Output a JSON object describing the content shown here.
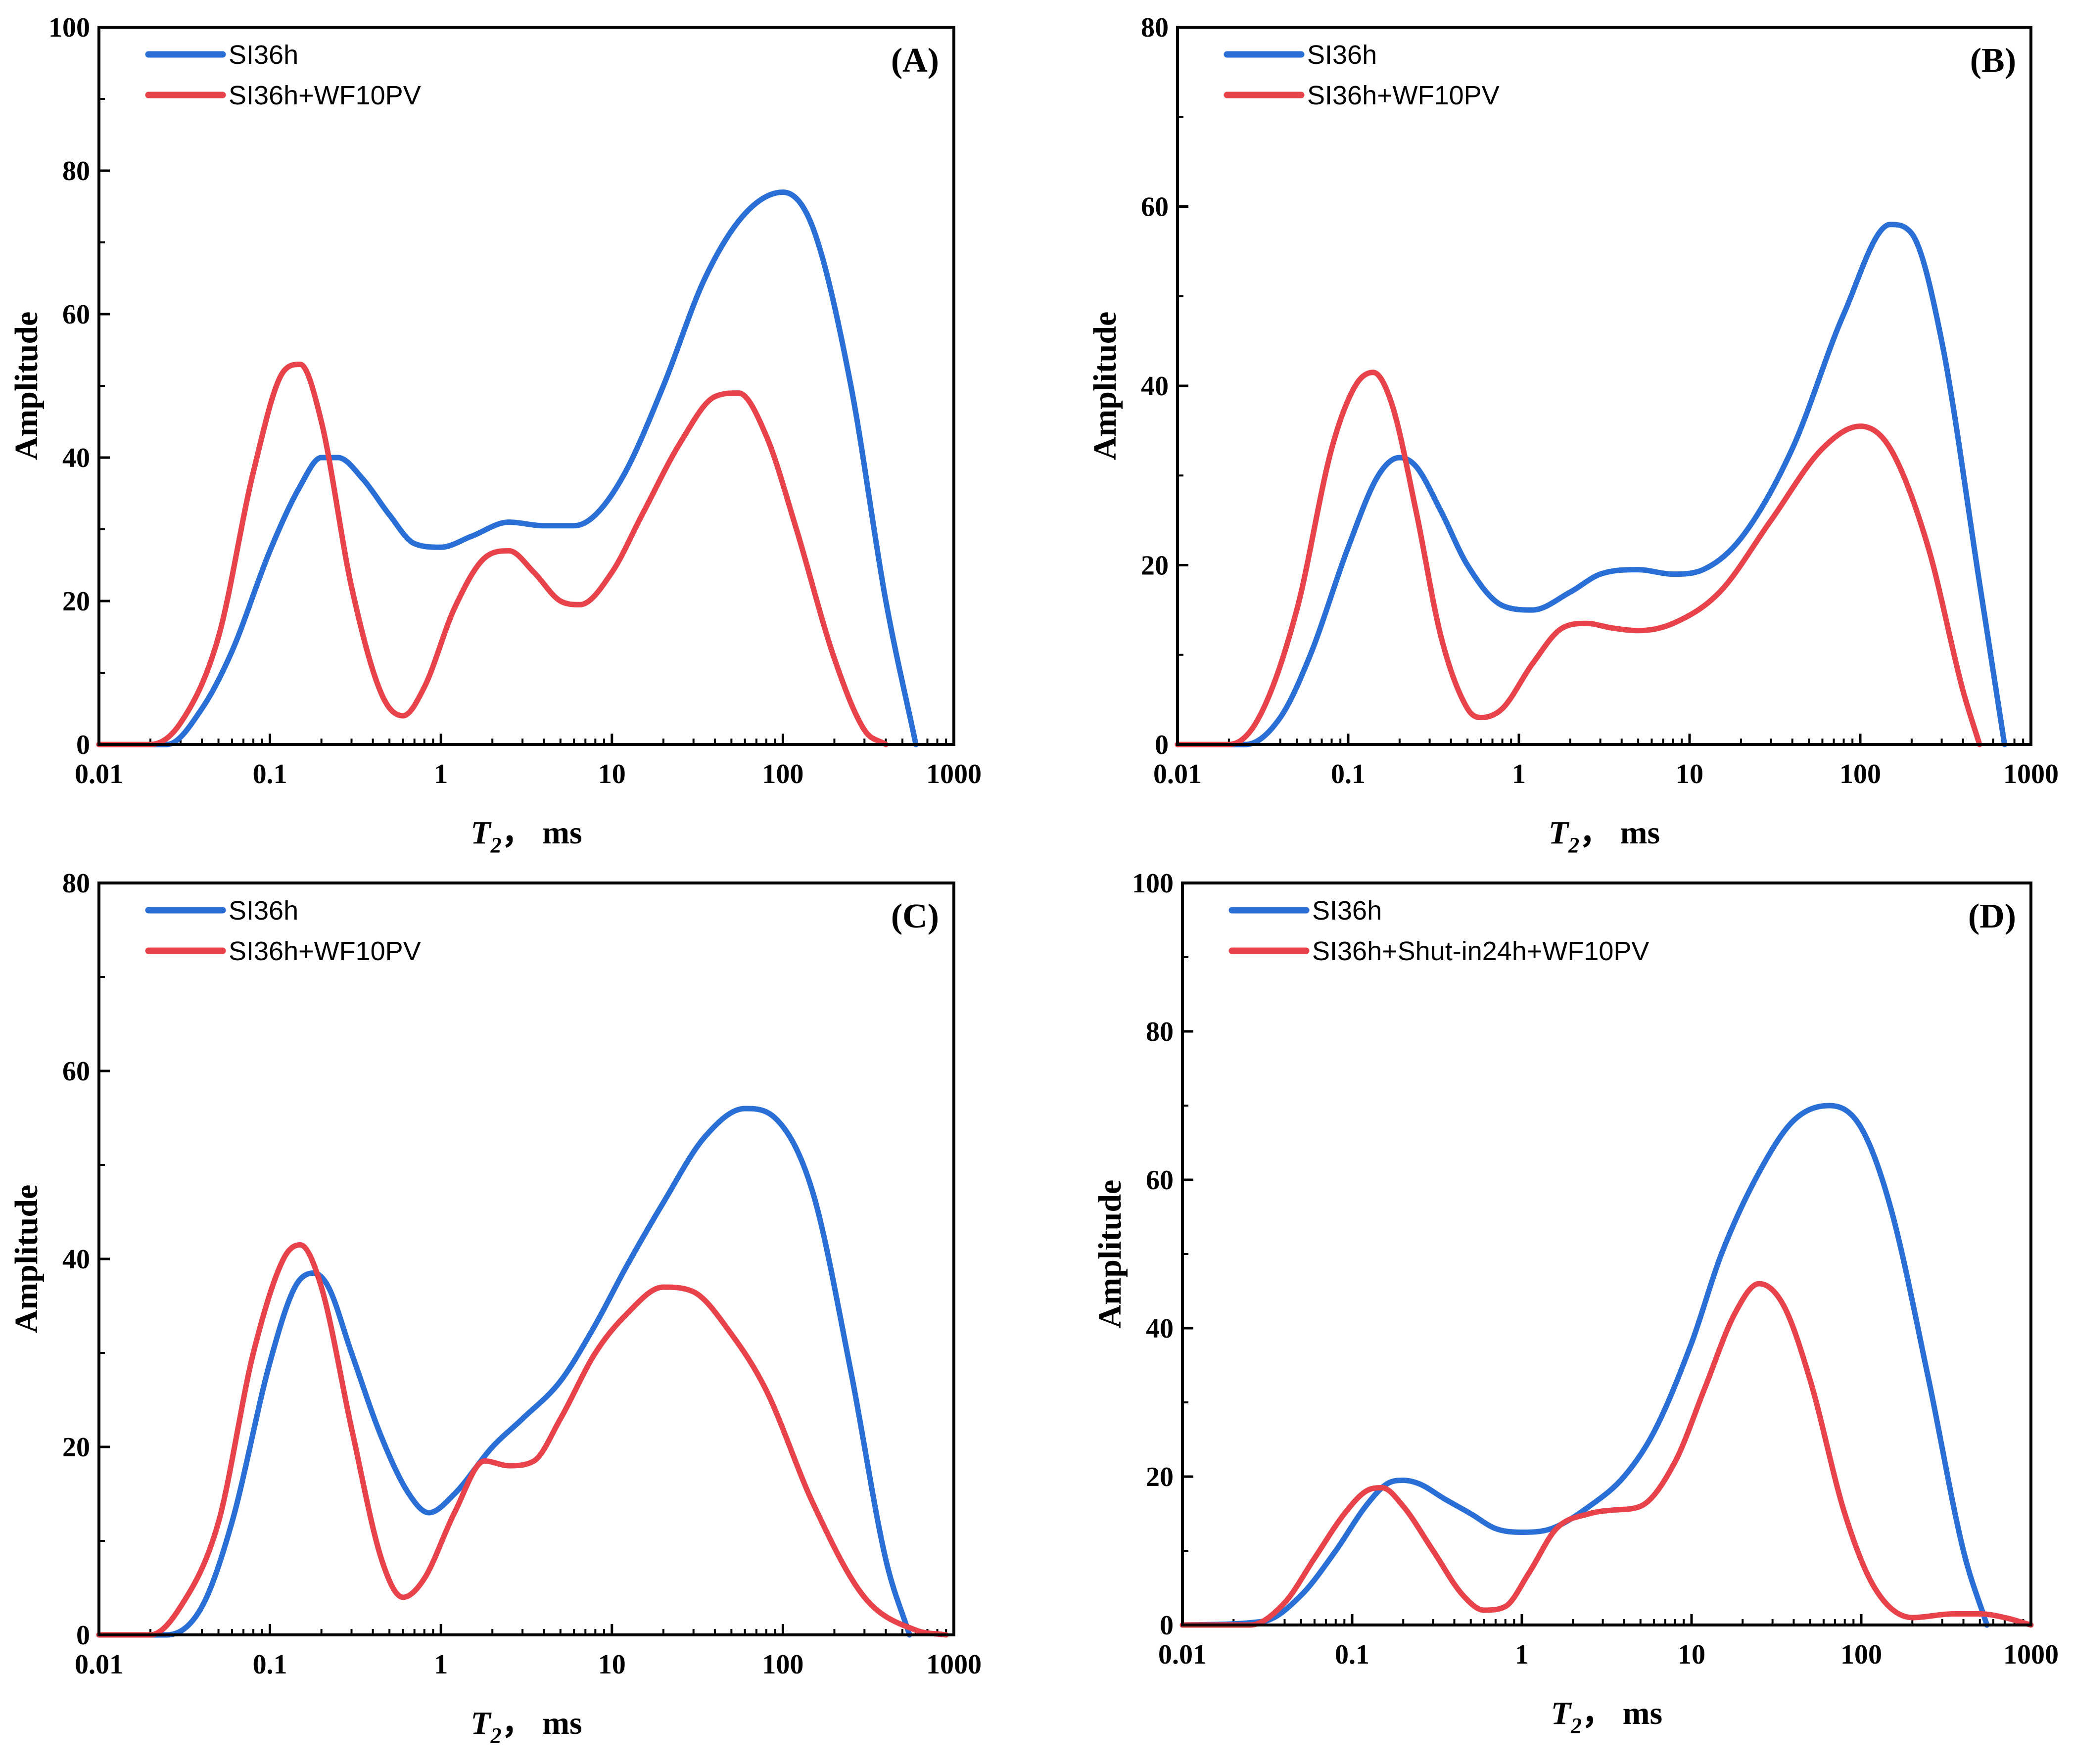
{
  "colors": {
    "blue": "#2a6fd6",
    "red": "#e8434a"
  },
  "chart_data": [
    {
      "type": "line",
      "panel_label": "(A)",
      "xscale": "log",
      "xlim": [
        0.01,
        1000
      ],
      "ylim": [
        0,
        100
      ],
      "xticks": [
        "0.01",
        "0.1",
        "1",
        "10",
        "100",
        "1000"
      ],
      "yticks": [
        "0",
        "20",
        "40",
        "60",
        "80",
        "100"
      ],
      "xlabel": {
        "main": "T",
        "sub": "2",
        "unit": "， ms"
      },
      "ylabel": "Amplitude",
      "legend_position": "top-left",
      "series": [
        {
          "name": "SI36h",
          "color": "#2a6fd6",
          "x": [
            0.01,
            0.025,
            0.04,
            0.06,
            0.1,
            0.15,
            0.2,
            0.25,
            0.35,
            0.5,
            0.7,
            1,
            1.5,
            2.5,
            4,
            6,
            8,
            12,
            20,
            35,
            60,
            100,
            150,
            250,
            400,
            600
          ],
          "y": [
            0,
            0,
            5,
            13,
            27,
            36,
            40,
            40,
            37,
            32,
            28,
            27.5,
            29,
            31,
            30.5,
            30.5,
            32,
            38,
            50,
            65,
            74,
            77,
            72,
            50,
            20,
            0
          ]
        },
        {
          "name": "SI36h+WF10PV",
          "color": "#e8434a",
          "x": [
            0.01,
            0.02,
            0.03,
            0.05,
            0.08,
            0.12,
            0.15,
            0.2,
            0.3,
            0.45,
            0.6,
            0.8,
            1.2,
            1.8,
            2.5,
            3.5,
            5,
            6.5,
            10,
            15,
            25,
            40,
            55,
            80,
            120,
            200,
            300,
            400
          ],
          "y": [
            0,
            0,
            3,
            15,
            38,
            52,
            53,
            45,
            22,
            7,
            4,
            8,
            19,
            26,
            27,
            24,
            20,
            19.5,
            24,
            32,
            42,
            48.5,
            49,
            43,
            30,
            12,
            2,
            0
          ]
        }
      ]
    },
    {
      "type": "line",
      "panel_label": "(B)",
      "xscale": "log",
      "xlim": [
        0.01,
        1000
      ],
      "ylim": [
        0,
        80
      ],
      "xticks": [
        "0.01",
        "0.1",
        "1",
        "10",
        "100",
        "1000"
      ],
      "yticks": [
        "0",
        "20",
        "40",
        "60",
        "80"
      ],
      "xlabel": {
        "main": "T",
        "sub": "2",
        "unit": "， ms"
      },
      "ylabel": "Amplitude",
      "legend_position": "top-left",
      "series": [
        {
          "name": "SI36h",
          "color": "#2a6fd6",
          "x": [
            0.01,
            0.025,
            0.04,
            0.06,
            0.1,
            0.15,
            0.2,
            0.25,
            0.35,
            0.5,
            0.8,
            1.2,
            2,
            3,
            5,
            8,
            12,
            20,
            40,
            80,
            150,
            200,
            300,
            500,
            700
          ],
          "y": [
            0,
            0,
            3,
            10,
            22,
            30,
            32,
            31,
            26,
            20,
            15.5,
            15,
            17,
            19,
            19.5,
            19,
            19.5,
            23,
            33,
            48,
            58,
            57,
            45,
            18,
            0
          ]
        },
        {
          "name": "SI36h+WF10PV",
          "color": "#e8434a",
          "x": [
            0.01,
            0.02,
            0.03,
            0.05,
            0.08,
            0.11,
            0.14,
            0.18,
            0.25,
            0.35,
            0.5,
            0.6,
            0.8,
            1.2,
            1.8,
            2.5,
            3.5,
            5,
            8,
            15,
            30,
            60,
            100,
            150,
            250,
            400,
            500
          ],
          "y": [
            0,
            0,
            3,
            15,
            33,
            40,
            41.5,
            38,
            26,
            12,
            4,
            3,
            4,
            9,
            13,
            13.5,
            13,
            12.7,
            13.5,
            17,
            25,
            33,
            35.5,
            33,
            22,
            6,
            0
          ]
        }
      ]
    },
    {
      "type": "line",
      "panel_label": "(C)",
      "xscale": "log",
      "xlim": [
        0.01,
        1000
      ],
      "ylim": [
        0,
        80
      ],
      "xticks": [
        "0.01",
        "0.1",
        "1",
        "10",
        "100",
        "1000"
      ],
      "yticks": [
        "0",
        "20",
        "40",
        "60",
        "80"
      ],
      "xlabel": {
        "main": "T",
        "sub": "2",
        "unit": "， ms"
      },
      "ylabel": "Amplitude",
      "legend_position": "top-left",
      "series": [
        {
          "name": "SI36h",
          "color": "#2a6fd6",
          "x": [
            0.01,
            0.025,
            0.04,
            0.06,
            0.1,
            0.14,
            0.18,
            0.22,
            0.3,
            0.45,
            0.65,
            0.85,
            1.2,
            2,
            3,
            5,
            8,
            12,
            20,
            35,
            60,
            90,
            150,
            250,
            400,
            550
          ],
          "y": [
            0,
            0,
            3,
            12,
            29,
            37,
            38.5,
            37,
            30,
            21,
            15,
            13,
            15,
            20,
            23,
            27,
            33,
            39,
            46,
            53,
            56,
            55,
            47,
            28,
            8,
            0
          ]
        },
        {
          "name": "SI36h+WF10PV",
          "color": "#e8434a",
          "x": [
            0.01,
            0.02,
            0.03,
            0.05,
            0.08,
            0.12,
            0.15,
            0.2,
            0.3,
            0.45,
            0.6,
            0.8,
            1.2,
            1.8,
            2.5,
            3.5,
            5,
            8,
            12,
            20,
            30,
            50,
            80,
            150,
            300,
            600,
            900
          ],
          "y": [
            0,
            0,
            3,
            12,
            30,
            40,
            41.5,
            37,
            22,
            8,
            4,
            6,
            13,
            18.5,
            18,
            18.5,
            23,
            30,
            34,
            37,
            36.5,
            32,
            26,
            14,
            4,
            0.5,
            0
          ]
        }
      ]
    },
    {
      "type": "line",
      "panel_label": "(D)",
      "xscale": "log",
      "xlim": [
        0.01,
        1000
      ],
      "ylim": [
        0,
        100
      ],
      "xticks": [
        "0.01",
        "0.1",
        "1",
        "10",
        "100",
        "1000"
      ],
      "yticks": [
        "0",
        "20",
        "40",
        "60",
        "80",
        "100"
      ],
      "xlabel": {
        "main": "T",
        "sub": "2",
        "unit": "， ms"
      },
      "ylabel": "Amplitude",
      "legend_position": "top-left",
      "series": [
        {
          "name": "SI36h",
          "color": "#2a6fd6",
          "x": [
            0.01,
            0.03,
            0.05,
            0.08,
            0.12,
            0.16,
            0.2,
            0.25,
            0.35,
            0.5,
            0.7,
            1,
            1.5,
            2.5,
            4,
            6,
            10,
            15,
            25,
            40,
            65,
            100,
            150,
            250,
            400,
            550
          ],
          "y": [
            0,
            0.5,
            4,
            10,
            16,
            19,
            19.5,
            19,
            17,
            15,
            13,
            12.5,
            13,
            16,
            20,
            26,
            38,
            50,
            61,
            68,
            70,
            67,
            56,
            33,
            10,
            0
          ]
        },
        {
          "name": "SI36h+Shut-in24h+WF10PV",
          "color": "#e8434a",
          "x": [
            0.01,
            0.025,
            0.04,
            0.06,
            0.09,
            0.12,
            0.15,
            0.2,
            0.3,
            0.45,
            0.6,
            0.8,
            1.1,
            1.6,
            2.5,
            3.5,
            5,
            8,
            12,
            18,
            25,
            35,
            50,
            80,
            120,
            200,
            350,
            500,
            700,
            1000
          ],
          "y": [
            0,
            0,
            3,
            9,
            15,
            18,
            18.5,
            16,
            10,
            4,
            2,
            2.5,
            7,
            13,
            15,
            15.5,
            16,
            22,
            32,
            42,
            46,
            43,
            33,
            15,
            5,
            1,
            1.5,
            1.5,
            1,
            0
          ]
        }
      ]
    }
  ]
}
